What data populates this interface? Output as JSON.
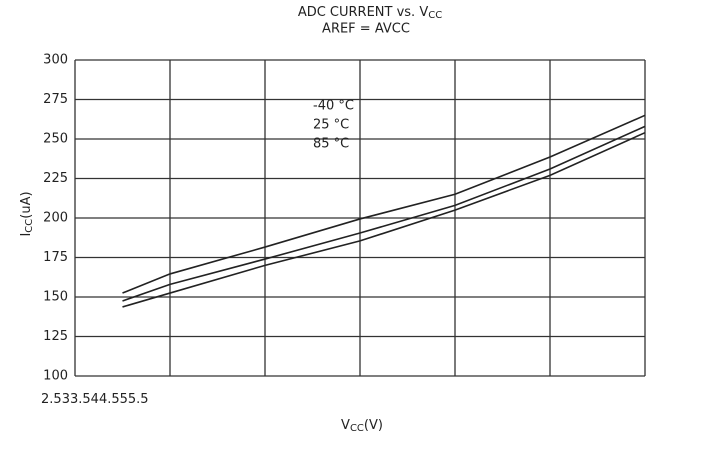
{
  "chart_data": {
    "type": "line",
    "title": "ADC CURRENT vs. V",
    "title_sub": "CC",
    "subtitle": "AREF = AVCC",
    "x_label": "V",
    "x_label_sub": "CC",
    "x_label_unit": "(V)",
    "y_label": "I",
    "y_label_sub": "CC",
    "y_label_unit": "(uA)",
    "x": [
      2.75,
      3,
      3.5,
      4,
      4.5,
      5,
      5.5
    ],
    "series": [
      {
        "name": "-40 °C",
        "color": "#222222",
        "values": [
          152.5,
          164.6,
          181.6,
          199.4,
          215,
          238.6,
          265
        ]
      },
      {
        "name": "25 °C",
        "color": "#222222",
        "values": [
          147.5,
          158,
          174,
          190.5,
          208,
          231,
          258
        ]
      },
      {
        "name": "85 °C",
        "color": "#222222",
        "values": [
          143.7,
          152.5,
          170,
          185.5,
          205,
          227,
          254
        ]
      }
    ],
    "xlim": [
      2.5,
      5.5
    ],
    "xticks": [
      2.5,
      3,
      3.5,
      4,
      4.5,
      5,
      5.5
    ],
    "ylim": [
      100,
      300
    ],
    "yticks": [
      100,
      125,
      150,
      175,
      200,
      225,
      250,
      275,
      300
    ],
    "grid": true
  }
}
